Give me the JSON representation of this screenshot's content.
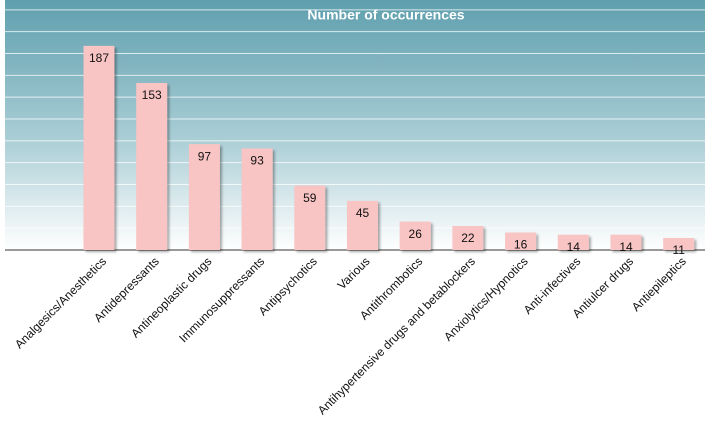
{
  "chart_data": {
    "type": "bar",
    "title": "Number of occurrences",
    "categories": [
      "Analgesics/Anesthetics",
      "Antidepressants",
      "Antineoplastic drugs",
      "Immunosuppressants",
      "Antipsychotics",
      "Various",
      "Antithrombotics",
      "Antihypertensive drugs and betablockers",
      "Anxiolytics/Hypnotics",
      "Anti-infectives",
      "Antiulcer drugs",
      "Antiepileptics"
    ],
    "values": [
      187,
      153,
      97,
      93,
      59,
      45,
      26,
      22,
      16,
      14,
      14,
      11
    ],
    "color": "#f9c4c4",
    "ylim": [
      0,
      229
    ],
    "yticks": [
      0,
      20,
      40,
      60,
      80,
      100,
      120,
      140,
      160,
      180,
      200,
      220
    ],
    "grid": true
  }
}
